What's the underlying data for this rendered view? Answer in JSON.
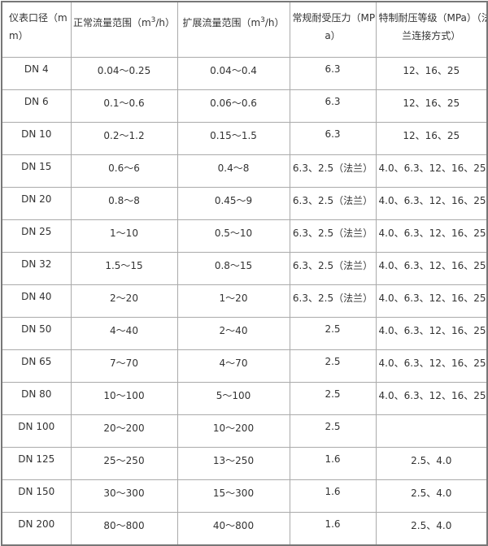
{
  "headers": [
    {
      "lines": [
        "仪表口径（m",
        "m）"
      ]
    },
    {
      "text": "正常流量范围（m",
      "sup": "3",
      "tail": "/h）"
    },
    {
      "text": "扩展流量范围（m",
      "sup": "3",
      "tail": "/h）"
    },
    {
      "lines": [
        "常规耐受压力（MP",
        "a）"
      ]
    },
    {
      "lines": [
        "特制耐压等级（MPa）（法",
        "兰连接方式）"
      ]
    }
  ],
  "rows": [
    [
      "DN 4",
      "0.04～0.25",
      "0.04～0.4",
      "6.3",
      "12、16、25"
    ],
    [
      "DN 6",
      "0.1～0.6",
      "0.06～0.6",
      "6.3",
      "12、16、25"
    ],
    [
      "DN 10",
      "0.2～1.2",
      "0.15～1.5",
      "6.3",
      "12、16、25"
    ],
    [
      "DN 15",
      "0.6～6",
      "0.4～8",
      "6.3、2.5（法兰）",
      "4.0、6.3、12、16、25"
    ],
    [
      "DN 20",
      "0.8～8",
      "0.45～9",
      "6.3、2.5（法兰）",
      "4.0、6.3、12、16、25"
    ],
    [
      "DN 25",
      "1～10",
      "0.5～10",
      "6.3、2.5（法兰）",
      "4.0、6.3、12、16、25"
    ],
    [
      "DN 32",
      "1.5～15",
      "0.8～15",
      "6.3、2.5（法兰）",
      "4.0、6.3、12、16、25"
    ],
    [
      "DN 40",
      "2～20",
      "1～20",
      "6.3、2.5（法兰）",
      "4.0、6.3、12、16、25"
    ],
    [
      "DN 50",
      "4～40",
      "2～40",
      "2.5",
      "4.0、6.3、12、16、25"
    ],
    [
      "DN 65",
      "7～70",
      "4～70",
      "2.5",
      "4.0、6.3、12、16、25"
    ],
    [
      "DN 80",
      "10～100",
      "5～100",
      "2.5",
      "4.0、6.3、12、16、25"
    ],
    [
      "DN 100",
      "20～200",
      "10～200",
      "2.5",
      ""
    ],
    [
      "DN 125",
      "25～250",
      "13～250",
      "1.6",
      "2.5、4.0"
    ],
    [
      "DN 150",
      "30～300",
      "15～300",
      "1.6",
      "2.5、4.0"
    ],
    [
      "DN 200",
      "80～800",
      "40～800",
      "1.6",
      "2.5、4.0"
    ]
  ]
}
